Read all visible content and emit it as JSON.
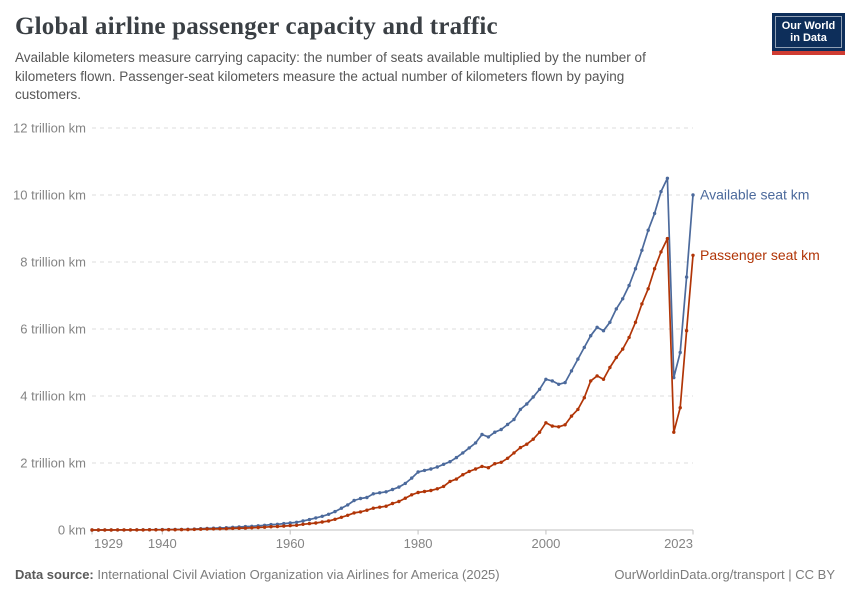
{
  "header": {
    "title": "Global airline passenger capacity and traffic",
    "subtitle_lines": "Available kilometers measure carrying capacity: the number of seats available multiplied by the number of\nkilometers flown. Passenger-seat kilometers measure the actual number of kilometers flown by paying\ncustomers.",
    "logo": {
      "line1": "Our World",
      "line2": "in Data",
      "bg_color": "#0d2e5a",
      "bar_color": "#cf3c32"
    }
  },
  "chart_data": {
    "type": "line",
    "title": "Global airline passenger capacity and traffic",
    "xlabel": "",
    "ylabel": "",
    "unit": "trillion km",
    "xlim": [
      1929,
      2023
    ],
    "ylim": [
      0,
      12
    ],
    "grid": "horizontal-dashed",
    "legend_position": "right-of-line-end",
    "x": [
      1929,
      1930,
      1931,
      1932,
      1933,
      1934,
      1935,
      1936,
      1937,
      1938,
      1939,
      1940,
      1941,
      1942,
      1943,
      1944,
      1945,
      1946,
      1947,
      1948,
      1949,
      1950,
      1951,
      1952,
      1953,
      1954,
      1955,
      1956,
      1957,
      1958,
      1959,
      1960,
      1961,
      1962,
      1963,
      1964,
      1965,
      1966,
      1967,
      1968,
      1969,
      1970,
      1971,
      1972,
      1973,
      1974,
      1975,
      1976,
      1977,
      1978,
      1979,
      1980,
      1981,
      1982,
      1983,
      1984,
      1985,
      1986,
      1987,
      1988,
      1989,
      1990,
      1991,
      1992,
      1993,
      1994,
      1995,
      1996,
      1997,
      1998,
      1999,
      2000,
      2001,
      2002,
      2003,
      2004,
      2005,
      2006,
      2007,
      2008,
      2009,
      2010,
      2011,
      2012,
      2013,
      2014,
      2015,
      2016,
      2017,
      2018,
      2019,
      2020,
      2021,
      2022,
      2023
    ],
    "xticks": [
      1929,
      1940,
      1960,
      1980,
      2000,
      2023
    ],
    "yticks": [
      {
        "value": 0,
        "label": "0 km"
      },
      {
        "value": 2,
        "label": "2 trillion km"
      },
      {
        "value": 4,
        "label": "4 trillion km"
      },
      {
        "value": 6,
        "label": "6 trillion km"
      },
      {
        "value": 8,
        "label": "8 trillion km"
      },
      {
        "value": 10,
        "label": "10 trillion km"
      },
      {
        "value": 12,
        "label": "12 trillion km"
      }
    ],
    "series": [
      {
        "name": "Available seat km",
        "color": "#4C6A9C",
        "values": [
          0.001,
          0.001,
          0.002,
          0.002,
          0.003,
          0.003,
          0.004,
          0.005,
          0.006,
          0.008,
          0.009,
          0.011,
          0.013,
          0.014,
          0.016,
          0.02,
          0.028,
          0.04,
          0.048,
          0.055,
          0.062,
          0.07,
          0.08,
          0.09,
          0.1,
          0.11,
          0.125,
          0.14,
          0.16,
          0.17,
          0.19,
          0.21,
          0.23,
          0.27,
          0.31,
          0.36,
          0.41,
          0.47,
          0.55,
          0.65,
          0.75,
          0.88,
          0.94,
          0.97,
          1.08,
          1.11,
          1.14,
          1.21,
          1.28,
          1.39,
          1.55,
          1.73,
          1.78,
          1.82,
          1.88,
          1.96,
          2.04,
          2.16,
          2.3,
          2.45,
          2.6,
          2.85,
          2.78,
          2.92,
          3.0,
          3.15,
          3.3,
          3.6,
          3.76,
          3.97,
          4.2,
          4.5,
          4.45,
          4.35,
          4.4,
          4.75,
          5.1,
          5.45,
          5.8,
          6.05,
          5.95,
          6.2,
          6.6,
          6.9,
          7.3,
          7.8,
          8.35,
          8.95,
          9.45,
          10.1,
          10.5,
          4.55,
          5.3,
          7.55,
          10.0
        ]
      },
      {
        "name": "Passenger seat km",
        "color": "#B13507",
        "values": [
          0.0005,
          0.001,
          0.001,
          0.001,
          0.002,
          0.002,
          0.003,
          0.003,
          0.004,
          0.005,
          0.006,
          0.007,
          0.008,
          0.009,
          0.011,
          0.013,
          0.018,
          0.025,
          0.03,
          0.033,
          0.037,
          0.04,
          0.047,
          0.053,
          0.058,
          0.065,
          0.075,
          0.085,
          0.098,
          0.105,
          0.117,
          0.13,
          0.14,
          0.17,
          0.19,
          0.21,
          0.24,
          0.27,
          0.32,
          0.38,
          0.44,
          0.51,
          0.54,
          0.59,
          0.65,
          0.68,
          0.71,
          0.79,
          0.85,
          0.95,
          1.05,
          1.12,
          1.15,
          1.18,
          1.23,
          1.3,
          1.45,
          1.52,
          1.65,
          1.75,
          1.82,
          1.9,
          1.86,
          1.98,
          2.02,
          2.14,
          2.3,
          2.46,
          2.56,
          2.71,
          2.92,
          3.2,
          3.1,
          3.08,
          3.14,
          3.4,
          3.6,
          3.95,
          4.45,
          4.6,
          4.5,
          4.85,
          5.15,
          5.4,
          5.75,
          6.2,
          6.75,
          7.2,
          7.8,
          8.3,
          8.7,
          2.92,
          3.65,
          5.95,
          8.2
        ]
      }
    ],
    "style": {
      "gridline_color": "#dcdcdc",
      "axis_color": "#c0c0c0",
      "tick_label_color": "#848484",
      "tick_font_size": 13,
      "legend_font_size": 14
    }
  },
  "footer": {
    "datasource_label": "Data source:",
    "datasource": "International Civil Aviation Organization via Airlines for America (2025)",
    "link": "OurWorldinData.org/transport",
    "separator": " | ",
    "license": "CC BY"
  }
}
